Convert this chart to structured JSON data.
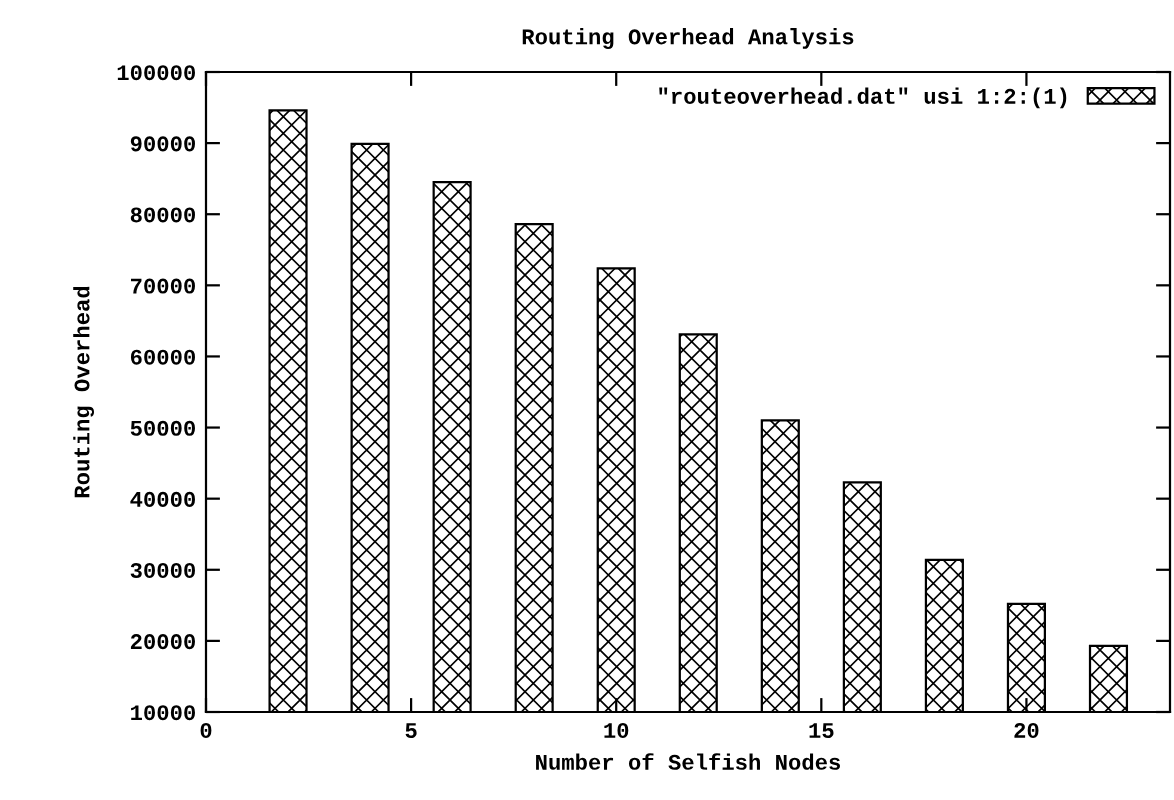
{
  "chart_data": {
    "type": "bar",
    "title": "Routing Overhead Analysis",
    "xlabel": "Number of Selfish Nodes",
    "ylabel": "Routing Overhead",
    "x": [
      2,
      4,
      6,
      8,
      10,
      12,
      14,
      16,
      18,
      20,
      22
    ],
    "series": [
      {
        "name": "\"routeoverhead.dat\" usi 1:2:(1)",
        "color": "#000000",
        "values": [
          94600,
          89900,
          84500,
          78600,
          72400,
          63100,
          51000,
          42300,
          31400,
          25200,
          19300
        ]
      }
    ],
    "xlim": [
      0,
      23.5
    ],
    "xticks": [
      0,
      5,
      10,
      15,
      20
    ],
    "ylim": [
      10000,
      100000
    ],
    "yticks": [
      10000,
      20000,
      30000,
      40000,
      50000,
      60000,
      70000,
      80000,
      90000,
      100000
    ],
    "grid": false,
    "legend": "top right"
  }
}
